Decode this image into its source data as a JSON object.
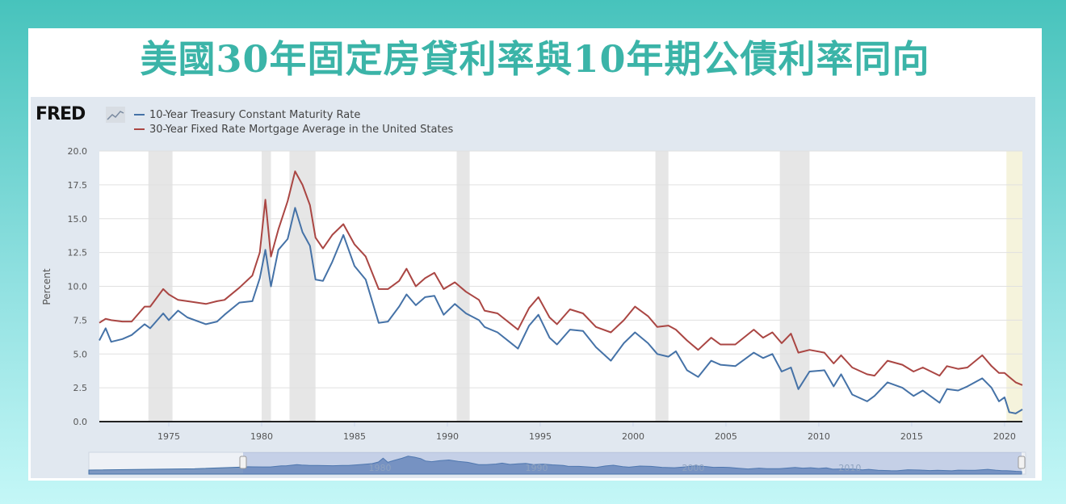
{
  "title": "美國30年固定房貸利率與10年期公債利率同向",
  "logo": "FRED",
  "chart_data": {
    "type": "line",
    "title": "美國30年固定房貸利率與10年期公債利率同向",
    "xlabel": "",
    "ylabel": "Percent",
    "xlim": [
      1971.26,
      2020.96
    ],
    "ylim": [
      0,
      20
    ],
    "x_ticks": [
      "1975",
      "1980",
      "1985",
      "1990",
      "1995",
      "2000",
      "2005",
      "2010",
      "2015",
      "2020"
    ],
    "y_ticks": [
      "0.0",
      "2.5",
      "5.0",
      "7.5",
      "10.0",
      "12.5",
      "15.0",
      "17.5",
      "20.0"
    ],
    "grid": true,
    "legend_position": "top-left",
    "recessions": [
      [
        1973.9,
        1975.2
      ],
      [
        1980.0,
        1980.5
      ],
      [
        1981.5,
        1982.9
      ],
      [
        1990.5,
        1991.2
      ],
      [
        2001.2,
        2001.9
      ],
      [
        2007.9,
        2009.5
      ]
    ],
    "highlight": [
      2020.1,
      2020.96
    ],
    "navigator_labels": [
      "1980",
      "1990",
      "2000",
      "2010"
    ],
    "series": [
      {
        "name": "10-Year Treasury Constant Maturity Rate",
        "color": "#4572a7",
        "points": [
          [
            1971.26,
            6.0
          ],
          [
            1971.6,
            6.9
          ],
          [
            1971.9,
            5.9
          ],
          [
            1972.5,
            6.1
          ],
          [
            1973.0,
            6.4
          ],
          [
            1973.7,
            7.2
          ],
          [
            1974.0,
            6.9
          ],
          [
            1974.7,
            8.0
          ],
          [
            1975.0,
            7.5
          ],
          [
            1975.5,
            8.2
          ],
          [
            1976.0,
            7.7
          ],
          [
            1977.0,
            7.2
          ],
          [
            1977.6,
            7.4
          ],
          [
            1978.0,
            7.9
          ],
          [
            1978.8,
            8.8
          ],
          [
            1979.5,
            8.9
          ],
          [
            1979.9,
            10.6
          ],
          [
            1980.2,
            12.7
          ],
          [
            1980.5,
            10.0
          ],
          [
            1980.9,
            12.7
          ],
          [
            1981.4,
            13.5
          ],
          [
            1981.8,
            15.8
          ],
          [
            1982.2,
            14.0
          ],
          [
            1982.6,
            13.0
          ],
          [
            1982.9,
            10.5
          ],
          [
            1983.3,
            10.4
          ],
          [
            1983.8,
            11.8
          ],
          [
            1984.4,
            13.8
          ],
          [
            1985.0,
            11.5
          ],
          [
            1985.6,
            10.5
          ],
          [
            1986.3,
            7.3
          ],
          [
            1986.8,
            7.4
          ],
          [
            1987.4,
            8.5
          ],
          [
            1987.8,
            9.4
          ],
          [
            1988.3,
            8.6
          ],
          [
            1988.8,
            9.2
          ],
          [
            1989.3,
            9.3
          ],
          [
            1989.8,
            7.9
          ],
          [
            1990.4,
            8.7
          ],
          [
            1991.0,
            8.0
          ],
          [
            1991.7,
            7.5
          ],
          [
            1992.0,
            7.0
          ],
          [
            1992.7,
            6.6
          ],
          [
            1993.8,
            5.4
          ],
          [
            1994.4,
            7.1
          ],
          [
            1994.9,
            7.9
          ],
          [
            1995.5,
            6.2
          ],
          [
            1995.9,
            5.7
          ],
          [
            1996.6,
            6.8
          ],
          [
            1997.3,
            6.7
          ],
          [
            1998.0,
            5.5
          ],
          [
            1998.8,
            4.5
          ],
          [
            1999.5,
            5.8
          ],
          [
            2000.1,
            6.6
          ],
          [
            2000.8,
            5.8
          ],
          [
            2001.3,
            5.0
          ],
          [
            2001.9,
            4.8
          ],
          [
            2002.3,
            5.2
          ],
          [
            2002.9,
            3.8
          ],
          [
            2003.5,
            3.3
          ],
          [
            2004.2,
            4.5
          ],
          [
            2004.7,
            4.2
          ],
          [
            2005.5,
            4.1
          ],
          [
            2006.5,
            5.1
          ],
          [
            2007.0,
            4.7
          ],
          [
            2007.5,
            5.0
          ],
          [
            2008.0,
            3.7
          ],
          [
            2008.5,
            4.0
          ],
          [
            2008.9,
            2.4
          ],
          [
            2009.5,
            3.7
          ],
          [
            2010.3,
            3.8
          ],
          [
            2010.8,
            2.6
          ],
          [
            2011.2,
            3.5
          ],
          [
            2011.8,
            2.0
          ],
          [
            2012.6,
            1.5
          ],
          [
            2013.0,
            1.9
          ],
          [
            2013.7,
            2.9
          ],
          [
            2014.5,
            2.5
          ],
          [
            2015.1,
            1.9
          ],
          [
            2015.6,
            2.3
          ],
          [
            2016.5,
            1.4
          ],
          [
            2016.9,
            2.4
          ],
          [
            2017.5,
            2.3
          ],
          [
            2018.0,
            2.6
          ],
          [
            2018.8,
            3.2
          ],
          [
            2019.3,
            2.5
          ],
          [
            2019.7,
            1.5
          ],
          [
            2020.0,
            1.8
          ],
          [
            2020.25,
            0.7
          ],
          [
            2020.6,
            0.6
          ],
          [
            2020.96,
            0.9
          ]
        ]
      },
      {
        "name": "30-Year Fixed Rate Mortgage Average in the United States",
        "color": "#aa4643",
        "points": [
          [
            1971.26,
            7.3
          ],
          [
            1971.6,
            7.6
          ],
          [
            1971.9,
            7.5
          ],
          [
            1972.5,
            7.4
          ],
          [
            1973.0,
            7.4
          ],
          [
            1973.7,
            8.5
          ],
          [
            1974.0,
            8.5
          ],
          [
            1974.7,
            9.8
          ],
          [
            1975.0,
            9.4
          ],
          [
            1975.5,
            9.0
          ],
          [
            1976.0,
            8.9
          ],
          [
            1977.0,
            8.7
          ],
          [
            1977.6,
            8.9
          ],
          [
            1978.0,
            9.0
          ],
          [
            1978.8,
            9.9
          ],
          [
            1979.5,
            10.8
          ],
          [
            1979.9,
            12.5
          ],
          [
            1980.2,
            16.4
          ],
          [
            1980.5,
            12.2
          ],
          [
            1980.9,
            14.2
          ],
          [
            1981.4,
            16.3
          ],
          [
            1981.8,
            18.5
          ],
          [
            1982.2,
            17.5
          ],
          [
            1982.6,
            16.0
          ],
          [
            1982.9,
            13.6
          ],
          [
            1983.3,
            12.8
          ],
          [
            1983.8,
            13.8
          ],
          [
            1984.4,
            14.6
          ],
          [
            1985.0,
            13.1
          ],
          [
            1985.6,
            12.2
          ],
          [
            1986.3,
            9.8
          ],
          [
            1986.8,
            9.8
          ],
          [
            1987.4,
            10.4
          ],
          [
            1987.8,
            11.3
          ],
          [
            1988.3,
            10.0
          ],
          [
            1988.8,
            10.6
          ],
          [
            1989.3,
            11.0
          ],
          [
            1989.8,
            9.8
          ],
          [
            1990.4,
            10.3
          ],
          [
            1991.0,
            9.6
          ],
          [
            1991.7,
            9.0
          ],
          [
            1992.0,
            8.2
          ],
          [
            1992.7,
            8.0
          ],
          [
            1993.8,
            6.8
          ],
          [
            1994.4,
            8.4
          ],
          [
            1994.9,
            9.2
          ],
          [
            1995.5,
            7.7
          ],
          [
            1995.9,
            7.2
          ],
          [
            1996.6,
            8.3
          ],
          [
            1997.3,
            8.0
          ],
          [
            1998.0,
            7.0
          ],
          [
            1998.8,
            6.6
          ],
          [
            1999.5,
            7.5
          ],
          [
            2000.1,
            8.5
          ],
          [
            2000.8,
            7.8
          ],
          [
            2001.3,
            7.0
          ],
          [
            2001.9,
            7.1
          ],
          [
            2002.3,
            6.8
          ],
          [
            2002.9,
            6.0
          ],
          [
            2003.5,
            5.3
          ],
          [
            2004.2,
            6.2
          ],
          [
            2004.7,
            5.7
          ],
          [
            2005.5,
            5.7
          ],
          [
            2006.5,
            6.8
          ],
          [
            2007.0,
            6.2
          ],
          [
            2007.5,
            6.6
          ],
          [
            2008.0,
            5.8
          ],
          [
            2008.5,
            6.5
          ],
          [
            2008.9,
            5.1
          ],
          [
            2009.5,
            5.3
          ],
          [
            2010.3,
            5.1
          ],
          [
            2010.8,
            4.3
          ],
          [
            2011.2,
            4.9
          ],
          [
            2011.8,
            4.0
          ],
          [
            2012.6,
            3.5
          ],
          [
            2013.0,
            3.4
          ],
          [
            2013.7,
            4.5
          ],
          [
            2014.5,
            4.2
          ],
          [
            2015.1,
            3.7
          ],
          [
            2015.6,
            4.0
          ],
          [
            2016.5,
            3.4
          ],
          [
            2016.9,
            4.1
          ],
          [
            2017.5,
            3.9
          ],
          [
            2018.0,
            4.0
          ],
          [
            2018.8,
            4.9
          ],
          [
            2019.3,
            4.1
          ],
          [
            2019.7,
            3.6
          ],
          [
            2020.0,
            3.6
          ],
          [
            2020.25,
            3.3
          ],
          [
            2020.6,
            2.9
          ],
          [
            2020.96,
            2.7
          ]
        ]
      }
    ]
  }
}
